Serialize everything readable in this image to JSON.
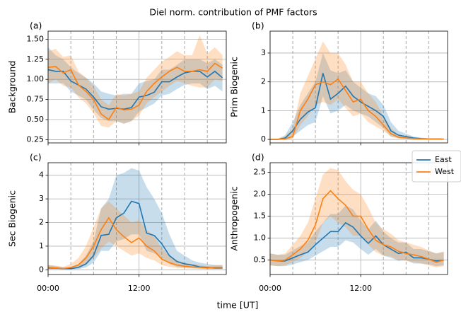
{
  "title": "Diel norm. contribution of PMF factors",
  "xlabel": "time [UT]",
  "chart_data": [
    {
      "type": "line",
      "label": "(a)",
      "ylabel": "Background",
      "x": [
        0,
        1,
        2,
        3,
        4,
        5,
        6,
        7,
        8,
        9,
        10,
        11,
        12,
        13,
        14,
        15,
        16,
        17,
        18,
        19,
        20,
        21,
        22,
        23
      ],
      "xlim": [
        0,
        23.5
      ],
      "xticks": [
        0,
        12
      ],
      "xticklabels": false,
      "vlines": [
        3,
        6,
        9,
        15,
        18,
        21
      ],
      "ylim": [
        0.21,
        1.6
      ],
      "yticks": [
        0.25,
        {
          "value": 0.5,
          "label": "0.50"
        },
        0.75,
        {
          "value": 1.0,
          "label": "1.00"
        },
        1.25,
        {
          "value": 1.5,
          "label": "1.50"
        }
      ],
      "grid": true,
      "series": [
        {
          "color": "#1f77b4",
          "values": [
            1.12,
            1.1,
            1.1,
            0.98,
            0.93,
            0.88,
            0.78,
            0.66,
            0.63,
            0.64,
            0.63,
            0.65,
            0.78,
            0.8,
            0.84,
            0.97,
            0.97,
            1.03,
            1.08,
            1.1,
            1.1,
            1.03,
            1.1,
            1.02
          ],
          "lower": [
            0.95,
            0.95,
            0.95,
            0.85,
            0.8,
            0.75,
            0.62,
            0.52,
            0.48,
            0.48,
            0.45,
            0.48,
            0.6,
            0.65,
            0.7,
            0.8,
            0.82,
            0.88,
            0.93,
            0.95,
            0.95,
            0.88,
            0.92,
            0.85
          ],
          "upper": [
            1.4,
            1.3,
            1.25,
            1.15,
            1.08,
            1.02,
            0.95,
            0.85,
            0.82,
            0.8,
            0.82,
            0.82,
            0.95,
            0.98,
            1.0,
            1.12,
            1.12,
            1.18,
            1.25,
            1.25,
            1.25,
            1.2,
            1.25,
            1.18
          ]
        },
        {
          "color": "#ff7f0e",
          "values": [
            1.15,
            1.16,
            1.08,
            1.12,
            0.93,
            0.85,
            0.75,
            0.57,
            0.5,
            0.65,
            0.62,
            0.63,
            0.68,
            0.85,
            0.95,
            1.03,
            1.1,
            1.15,
            1.1,
            1.1,
            1.12,
            1.1,
            1.2,
            1.14
          ],
          "lower": [
            0.95,
            1.0,
            0.92,
            0.9,
            0.78,
            0.7,
            0.58,
            0.42,
            0.4,
            0.48,
            0.45,
            0.48,
            0.55,
            0.7,
            0.78,
            0.85,
            0.92,
            0.98,
            0.95,
            0.92,
            0.9,
            0.9,
            1.0,
            0.98
          ],
          "upper": [
            1.35,
            1.38,
            1.28,
            1.3,
            1.1,
            1.02,
            0.92,
            0.75,
            0.68,
            0.82,
            0.8,
            0.82,
            0.85,
            1.02,
            1.12,
            1.22,
            1.28,
            1.35,
            1.3,
            1.3,
            1.55,
            1.32,
            1.4,
            1.3
          ]
        }
      ]
    },
    {
      "type": "line",
      "label": "(b)",
      "ylabel": "Prim Biogenic",
      "x": [
        0,
        1,
        2,
        3,
        4,
        5,
        6,
        7,
        8,
        9,
        10,
        11,
        12,
        13,
        14,
        15,
        16,
        17,
        18,
        19,
        20,
        21,
        22,
        23
      ],
      "xlim": [
        0,
        23.5
      ],
      "xticks": [
        0,
        12
      ],
      "xticklabels": false,
      "vlines": [
        3,
        6,
        9,
        15,
        18,
        21
      ],
      "ylim": [
        -0.12,
        3.76
      ],
      "yticks": [
        0,
        1,
        2,
        3
      ],
      "grid": true,
      "series": [
        {
          "color": "#1f77b4",
          "values": [
            0,
            0,
            0.05,
            0.3,
            0.7,
            0.95,
            1.1,
            2.3,
            1.4,
            1.6,
            1.85,
            1.5,
            1.3,
            1.15,
            1.0,
            0.8,
            0.3,
            0.15,
            0.1,
            0.05,
            0.03,
            0.02,
            0.02,
            0.01
          ],
          "lower": [
            0,
            0,
            0,
            0.1,
            0.3,
            0.5,
            0.6,
            1.5,
            0.9,
            1.0,
            1.2,
            1.0,
            0.9,
            0.8,
            0.6,
            0.4,
            0.1,
            0.05,
            0.03,
            0.02,
            0.01,
            0.01,
            0.01,
            0
          ],
          "upper": [
            0.02,
            0.02,
            0.15,
            0.6,
            1.2,
            1.6,
            2.0,
            3.0,
            2.4,
            2.3,
            2.4,
            2.0,
            1.8,
            1.6,
            1.5,
            1.2,
            0.6,
            0.3,
            0.2,
            0.1,
            0.06,
            0.04,
            0.04,
            0.02
          ]
        },
        {
          "color": "#ff7f0e",
          "values": [
            0,
            0,
            0.02,
            0.1,
            1.0,
            1.4,
            1.9,
            2.0,
            1.9,
            2.1,
            1.7,
            1.3,
            1.4,
            1.0,
            0.8,
            0.5,
            0.2,
            0.08,
            0.05,
            0.03,
            0.02,
            0.02,
            0.02,
            0.01
          ],
          "lower": [
            0,
            0,
            0,
            0.02,
            0.5,
            0.8,
            1.2,
            1.3,
            1.2,
            1.4,
            1.1,
            0.8,
            0.9,
            0.6,
            0.45,
            0.3,
            0.1,
            0.03,
            0.02,
            0.01,
            0.01,
            0.01,
            0.01,
            0
          ],
          "upper": [
            0.02,
            0.02,
            0.1,
            0.4,
            1.6,
            2.2,
            2.8,
            3.4,
            3.0,
            3.0,
            2.6,
            2.0,
            2.0,
            1.6,
            1.3,
            0.8,
            0.4,
            0.15,
            0.1,
            0.06,
            0.04,
            0.04,
            0.04,
            0.02
          ]
        }
      ]
    },
    {
      "type": "line",
      "label": "(c)",
      "ylabel": "Sec Biogenic",
      "x": [
        0,
        1,
        2,
        3,
        4,
        5,
        6,
        7,
        8,
        9,
        10,
        11,
        12,
        13,
        14,
        15,
        16,
        17,
        18,
        19,
        20,
        21,
        22,
        23
      ],
      "xlim": [
        0,
        23.5
      ],
      "xticks": [
        {
          "value": 0,
          "label": "00:00"
        },
        {
          "value": 12,
          "label": "12:00"
        }
      ],
      "vlines": [
        3,
        6,
        9,
        15,
        18,
        21
      ],
      "ylim": [
        -0.2,
        4.53
      ],
      "yticks": [
        0,
        1,
        2,
        3,
        4
      ],
      "grid": true,
      "series": [
        {
          "color": "#1f77b4",
          "values": [
            0.08,
            0.07,
            0.05,
            0.05,
            0.1,
            0.25,
            0.6,
            1.45,
            1.5,
            2.2,
            2.4,
            2.9,
            2.8,
            1.55,
            1.45,
            1.1,
            0.6,
            0.35,
            0.25,
            0.2,
            0.12,
            0.1,
            0.08,
            0.08
          ],
          "lower": [
            0.02,
            0.02,
            0.02,
            0.02,
            0.03,
            0.1,
            0.3,
            0.8,
            0.8,
            1.2,
            1.3,
            1.5,
            1.5,
            0.8,
            0.7,
            0.5,
            0.25,
            0.12,
            0.1,
            0.08,
            0.05,
            0.04,
            0.03,
            0.03
          ],
          "upper": [
            0.2,
            0.15,
            0.1,
            0.1,
            0.25,
            0.6,
            1.2,
            2.6,
            3.0,
            4.0,
            4.1,
            4.3,
            4.2,
            3.5,
            3.0,
            2.4,
            1.5,
            0.8,
            0.6,
            0.4,
            0.3,
            0.25,
            0.2,
            0.2
          ]
        },
        {
          "color": "#ff7f0e",
          "values": [
            0.1,
            0.08,
            0.05,
            0.1,
            0.2,
            0.5,
            1.0,
            1.7,
            2.2,
            1.7,
            1.4,
            1.15,
            1.35,
            1.0,
            0.8,
            0.45,
            0.3,
            0.2,
            0.15,
            0.12,
            0.1,
            0.08,
            0.1,
            0.1
          ],
          "lower": [
            0.03,
            0.03,
            0.02,
            0.03,
            0.06,
            0.2,
            0.5,
            0.9,
            1.2,
            1.0,
            0.8,
            0.6,
            0.7,
            0.5,
            0.4,
            0.2,
            0.12,
            0.08,
            0.06,
            0.05,
            0.04,
            0.03,
            0.04,
            0.04
          ],
          "upper": [
            0.2,
            0.18,
            0.12,
            0.25,
            0.5,
            1.0,
            1.8,
            2.6,
            2.9,
            2.6,
            2.3,
            2.0,
            2.1,
            1.7,
            1.4,
            0.9,
            0.6,
            0.4,
            0.3,
            0.25,
            0.2,
            0.15,
            0.2,
            0.2
          ]
        }
      ]
    },
    {
      "type": "line",
      "label": "(d)",
      "ylabel": "Anthropogenic",
      "x": [
        0,
        1,
        2,
        3,
        4,
        5,
        6,
        7,
        8,
        9,
        10,
        11,
        12,
        13,
        14,
        15,
        16,
        17,
        18,
        19,
        20,
        21,
        22,
        23
      ],
      "xlim": [
        0,
        23.5
      ],
      "xticks": [
        {
          "value": 0,
          "label": "00:00"
        },
        {
          "value": 12,
          "label": "12:00"
        }
      ],
      "vlines": [
        3,
        6,
        9,
        15,
        18,
        21
      ],
      "ylim": [
        0.17,
        2.72
      ],
      "yticks": [
        0.5,
        {
          "value": 1.0,
          "label": "1.0"
        },
        1.5,
        {
          "value": 2.0,
          "label": "2.0"
        },
        2.5
      ],
      "grid": true,
      "legend": "upper right",
      "series": [
        {
          "name": "East",
          "color": "#1f77b4",
          "values": [
            0.5,
            0.48,
            0.48,
            0.55,
            0.62,
            0.68,
            0.85,
            1.0,
            1.15,
            1.15,
            1.35,
            1.25,
            1.05,
            0.88,
            1.05,
            0.85,
            0.75,
            0.65,
            0.68,
            0.55,
            0.55,
            0.52,
            0.48,
            0.5
          ],
          "lower": [
            0.38,
            0.36,
            0.36,
            0.4,
            0.45,
            0.5,
            0.6,
            0.7,
            0.8,
            0.8,
            0.95,
            0.9,
            0.75,
            0.62,
            0.75,
            0.6,
            0.55,
            0.48,
            0.5,
            0.42,
            0.42,
            0.4,
            0.36,
            0.38
          ],
          "upper": [
            0.65,
            0.62,
            0.62,
            0.72,
            0.82,
            0.9,
            1.15,
            1.35,
            1.55,
            1.55,
            1.75,
            1.65,
            1.4,
            1.2,
            1.4,
            1.15,
            1.0,
            0.9,
            0.9,
            0.75,
            0.75,
            0.7,
            0.65,
            0.68
          ]
        },
        {
          "name": "West",
          "color": "#ff7f0e",
          "values": [
            0.5,
            0.48,
            0.5,
            0.62,
            0.75,
            0.95,
            1.3,
            1.9,
            2.08,
            1.9,
            1.75,
            1.5,
            1.5,
            1.2,
            0.95,
            0.85,
            0.8,
            0.7,
            0.65,
            0.62,
            0.58,
            0.52,
            0.45,
            0.5
          ],
          "lower": [
            0.38,
            0.36,
            0.38,
            0.45,
            0.55,
            0.68,
            0.9,
            1.35,
            1.5,
            1.35,
            1.25,
            1.05,
            1.05,
            0.85,
            0.68,
            0.6,
            0.58,
            0.5,
            0.48,
            0.45,
            0.42,
            0.38,
            0.33,
            0.36
          ],
          "upper": [
            0.65,
            0.62,
            0.65,
            0.85,
            1.05,
            1.35,
            1.9,
            2.45,
            2.6,
            2.55,
            2.3,
            2.1,
            2.0,
            1.7,
            1.35,
            1.2,
            1.1,
            0.95,
            0.9,
            0.85,
            0.8,
            0.72,
            0.65,
            0.7
          ]
        }
      ]
    }
  ]
}
